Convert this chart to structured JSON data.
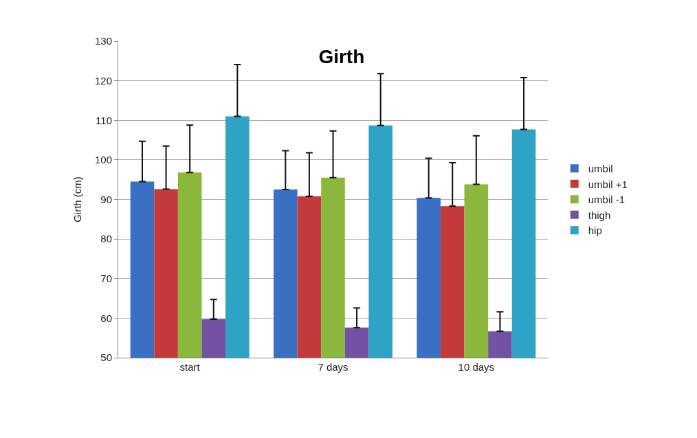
{
  "chart_data": {
    "type": "bar",
    "title": "Girth",
    "ylabel": "Girth (cm)",
    "categories": [
      "start",
      "7 days",
      "10 days"
    ],
    "series": [
      {
        "name": "umbil",
        "color": "#3a6fc4",
        "values": [
          94.5,
          92.5,
          90.4
        ],
        "errors": [
          [
            94.5,
            104.7
          ],
          [
            92.5,
            102.3
          ],
          [
            90.4,
            100.4
          ]
        ]
      },
      {
        "name": "umbil +1",
        "color": "#c4393a",
        "values": [
          92.6,
          90.8,
          88.3
        ],
        "errors": [
          [
            92.6,
            103.5
          ],
          [
            90.8,
            101.8
          ],
          [
            88.3,
            99.3
          ]
        ]
      },
      {
        "name": "umbil -1",
        "color": "#8bb83c",
        "values": [
          96.8,
          95.5,
          93.8
        ],
        "errors": [
          [
            96.8,
            108.8
          ],
          [
            95.5,
            107.3
          ],
          [
            93.8,
            106.1
          ]
        ]
      },
      {
        "name": "thigh",
        "color": "#7351a3",
        "values": [
          59.7,
          57.6,
          56.7
        ],
        "errors": [
          [
            59.7,
            64.7
          ],
          [
            57.6,
            62.6
          ],
          [
            56.7,
            61.6
          ]
        ]
      },
      {
        "name": "hip",
        "color": "#2fa3c6",
        "values": [
          111,
          108.7,
          107.7
        ],
        "errors": [
          [
            111,
            124.1
          ],
          [
            108.7,
            121.8
          ],
          [
            107.7,
            120.8
          ]
        ]
      }
    ],
    "ylim": [
      50,
      130
    ],
    "yticks": [
      50,
      60,
      70,
      80,
      90,
      100,
      110,
      120,
      130
    ],
    "grid": "y",
    "legend": "right"
  }
}
